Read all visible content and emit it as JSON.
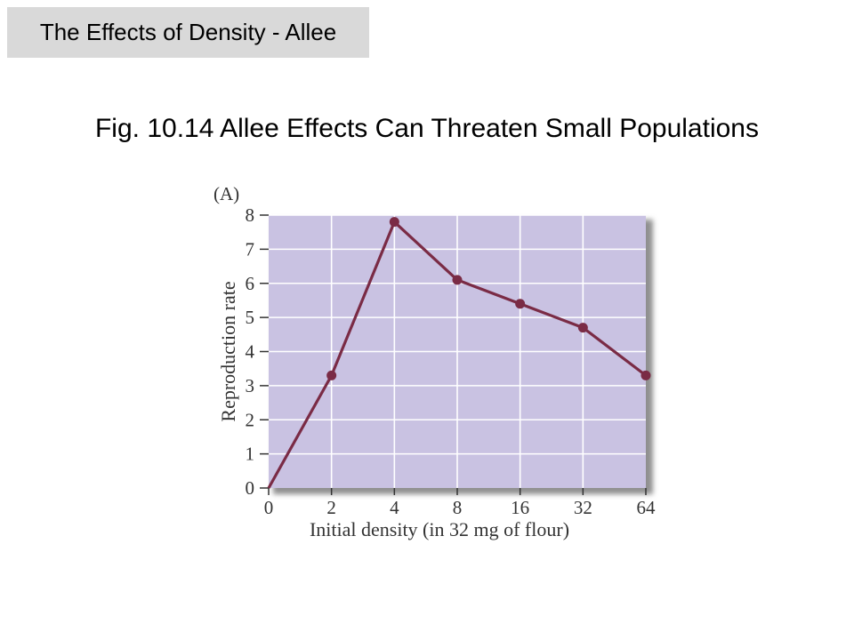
{
  "header": {
    "tag": "The Effects of Density - Allee"
  },
  "figure": {
    "title": "Fig. 10.14  Allee Effects Can Threaten Small Populations"
  },
  "colors": {
    "plot_bg": "#c9c2e2",
    "grid": "#ffffff",
    "series": "#7a2b45",
    "shadow": "#8f8f8f"
  },
  "chart_data": {
    "type": "line",
    "panel_label": "(A)",
    "xlabel": "Initial density (in 32 mg of flour)",
    "ylabel": "Reproduction rate",
    "categories": [
      "0",
      "2",
      "4",
      "8",
      "16",
      "32",
      "64"
    ],
    "yticks": [
      "0",
      "1",
      "2",
      "3",
      "4",
      "5",
      "6",
      "7",
      "8"
    ],
    "ylim": [
      0,
      8
    ],
    "grid": true,
    "series": [
      {
        "values": [
          0,
          3.3,
          7.8,
          6.1,
          5.4,
          4.7,
          3.3
        ],
        "markers": [
          false,
          true,
          true,
          true,
          true,
          true,
          true
        ]
      }
    ]
  }
}
